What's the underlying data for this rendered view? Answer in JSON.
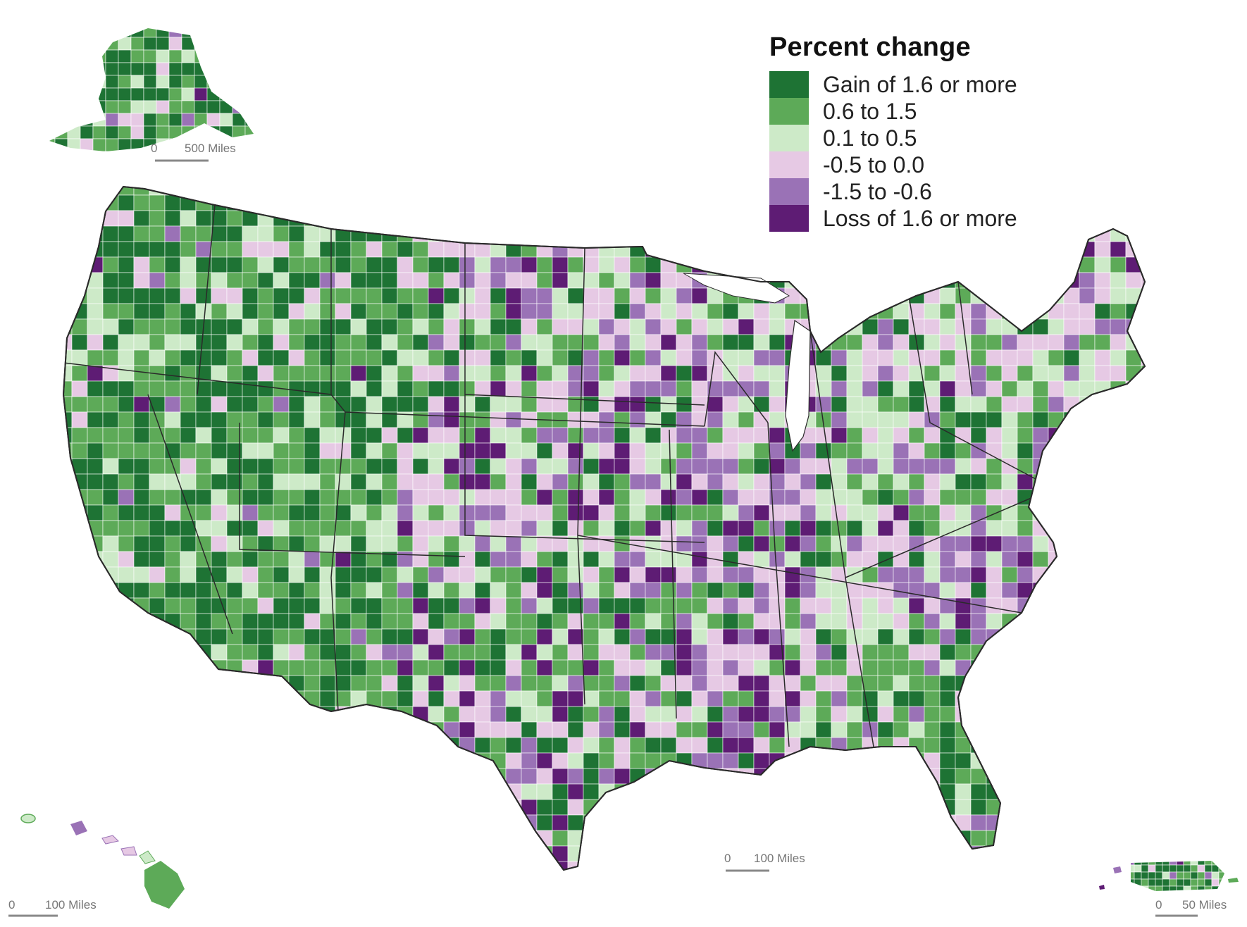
{
  "legend": {
    "title": "Percent change",
    "items": [
      {
        "label": "Gain of 1.6 or more",
        "color": "#1e7334"
      },
      {
        "label": "0.6 to 1.5",
        "color": "#5daa58"
      },
      {
        "label": "0.1 to 0.5",
        "color": "#cdeac8"
      },
      {
        "label": "-0.5 to 0.0",
        "color": "#e6c9e4"
      },
      {
        "label": "-1.5 to -0.6",
        "color": "#9a72b6"
      },
      {
        "label": "Loss of 1.6 or more",
        "color": "#5e1c74"
      }
    ]
  },
  "scale_bars": {
    "alaska": {
      "zero": "0",
      "distance": "500 Miles"
    },
    "conus": {
      "zero": "0",
      "distance": "100 Miles"
    },
    "hawaii": {
      "zero": "0",
      "distance": "100 Miles"
    },
    "puerto_rico": {
      "zero": "0",
      "distance": "50 Miles"
    }
  },
  "state_border_color": "#2a2a2a"
}
